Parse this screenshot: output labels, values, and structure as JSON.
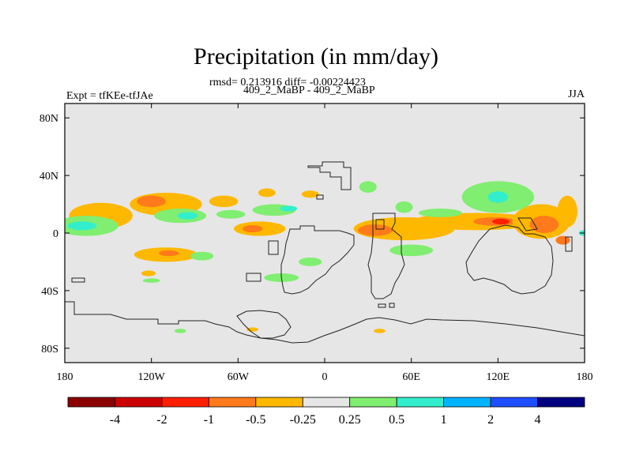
{
  "title": "Precipitation (in mm/day)",
  "stats_line": "rmsd= 0.213916 diff= -0.00224423",
  "center_label": "409_2_MaBP - 409_2_MaBP",
  "left_label": "Expt = tfKEe-tfJAe",
  "right_label": "JJA",
  "map": {
    "lon_range": [
      -180,
      180
    ],
    "lat_range": [
      -90,
      90
    ],
    "x_ticks": [
      {
        "lon": -180,
        "label": "180"
      },
      {
        "lon": -120,
        "label": "120W"
      },
      {
        "lon": -60,
        "label": "60W"
      },
      {
        "lon": 0,
        "label": "0"
      },
      {
        "lon": 60,
        "label": "60E"
      },
      {
        "lon": 120,
        "label": "120E"
      },
      {
        "lon": 180,
        "label": "180"
      }
    ],
    "y_ticks": [
      {
        "lat": 80,
        "label": "80N"
      },
      {
        "lat": 40,
        "label": "40N"
      },
      {
        "lat": 0,
        "label": "0"
      },
      {
        "lat": -40,
        "label": "40S"
      },
      {
        "lat": -80,
        "label": "80S"
      }
    ],
    "background_color": "#e6e6e6"
  },
  "colorbar": {
    "colors": [
      "#8b0000",
      "#cc0000",
      "#ff1f00",
      "#ff7a1a",
      "#ffb800",
      "#e6e6e6",
      "#80ee70",
      "#33eecc",
      "#00b4ff",
      "#1f4eff",
      "#000080"
    ],
    "labels": [
      "-4",
      "-2",
      "-1",
      "-0.5",
      "-0.25",
      "0.25",
      "0.5",
      "1",
      "2",
      "4"
    ]
  },
  "anomalies": [
    {
      "lon": -155,
      "lat": 12,
      "rx": 22,
      "ry": 9,
      "level": "neg1"
    },
    {
      "lon": -110,
      "lat": 20,
      "rx": 25,
      "ry": 8,
      "level": "neg1"
    },
    {
      "lon": -120,
      "lat": 22,
      "rx": 10,
      "ry": 4,
      "level": "neg2"
    },
    {
      "lon": -70,
      "lat": 22,
      "rx": 10,
      "ry": 4,
      "level": "neg1"
    },
    {
      "lon": -40,
      "lat": 28,
      "rx": 6,
      "ry": 3,
      "level": "neg1"
    },
    {
      "lon": -10,
      "lat": 27,
      "rx": 6,
      "ry": 2.5,
      "level": "neg1"
    },
    {
      "lon": -165,
      "lat": 5,
      "rx": 22,
      "ry": 7,
      "level": "pos1"
    },
    {
      "lon": -168,
      "lat": 5,
      "rx": 10,
      "ry": 3,
      "level": "pos2"
    },
    {
      "lon": -100,
      "lat": 12,
      "rx": 18,
      "ry": 5,
      "level": "pos1"
    },
    {
      "lon": -95,
      "lat": 12,
      "rx": 7,
      "ry": 2.5,
      "level": "pos2"
    },
    {
      "lon": -35,
      "lat": 16,
      "rx": 15,
      "ry": 4,
      "level": "pos1"
    },
    {
      "lon": -25,
      "lat": 17,
      "rx": 6,
      "ry": 2,
      "level": "pos2"
    },
    {
      "lon": -65,
      "lat": 13,
      "rx": 10,
      "ry": 3,
      "level": "pos1"
    },
    {
      "lon": -45,
      "lat": 3,
      "rx": 18,
      "ry": 5,
      "level": "neg1"
    },
    {
      "lon": -50,
      "lat": 3,
      "rx": 7,
      "ry": 2.5,
      "level": "neg2"
    },
    {
      "lon": -110,
      "lat": -15,
      "rx": 22,
      "ry": 5,
      "level": "neg1"
    },
    {
      "lon": -108,
      "lat": -14,
      "rx": 7,
      "ry": 2,
      "level": "neg2"
    },
    {
      "lon": -85,
      "lat": -16,
      "rx": 8,
      "ry": 3,
      "level": "pos1"
    },
    {
      "lon": -122,
      "lat": -28,
      "rx": 5,
      "ry": 2,
      "level": "neg1"
    },
    {
      "lon": -30,
      "lat": -31,
      "rx": 12,
      "ry": 3,
      "level": "pos1"
    },
    {
      "lon": 55,
      "lat": 3,
      "rx": 35,
      "ry": 8,
      "level": "neg1"
    },
    {
      "lon": 35,
      "lat": 2,
      "rx": 12,
      "ry": 4,
      "level": "neg2"
    },
    {
      "lon": 105,
      "lat": 8,
      "rx": 45,
      "ry": 6,
      "level": "neg1"
    },
    {
      "lon": 118,
      "lat": 8,
      "rx": 15,
      "ry": 3,
      "level": "neg2"
    },
    {
      "lon": 122,
      "lat": 8,
      "rx": 6,
      "ry": 2,
      "level": "neg3"
    },
    {
      "lon": 150,
      "lat": 8,
      "rx": 20,
      "ry": 12,
      "level": "neg1"
    },
    {
      "lon": 152,
      "lat": 6,
      "rx": 10,
      "ry": 6,
      "level": "neg2"
    },
    {
      "lon": 168,
      "lat": 15,
      "rx": 7,
      "ry": 11,
      "level": "neg1"
    },
    {
      "lon": 128,
      "lat": 20,
      "rx": 6,
      "ry": 3,
      "level": "neg1"
    },
    {
      "lon": 165,
      "lat": -5,
      "rx": 5,
      "ry": 3,
      "level": "neg2"
    },
    {
      "lon": 80,
      "lat": 14,
      "rx": 15,
      "ry": 3,
      "level": "pos1"
    },
    {
      "lon": 120,
      "lat": 25,
      "rx": 25,
      "ry": 11,
      "level": "pos1"
    },
    {
      "lon": 120,
      "lat": 25,
      "rx": 7,
      "ry": 4,
      "level": "pos2"
    },
    {
      "lon": 30,
      "lat": 32,
      "rx": 6,
      "ry": 4,
      "level": "pos1"
    },
    {
      "lon": 55,
      "lat": 18,
      "rx": 6,
      "ry": 4,
      "level": "pos1"
    },
    {
      "lon": 60,
      "lat": -12,
      "rx": 15,
      "ry": 4,
      "level": "pos1"
    },
    {
      "lon": -10,
      "lat": -20,
      "rx": 8,
      "ry": 3,
      "level": "pos1"
    },
    {
      "lon": 180,
      "lat": 0,
      "rx": 4,
      "ry": 2,
      "level": "pos2"
    },
    {
      "lon": -50,
      "lat": -67,
      "rx": 4,
      "ry": 1.5,
      "level": "neg1"
    },
    {
      "lon": 38,
      "lat": -68,
      "rx": 4,
      "ry": 1.5,
      "level": "neg1"
    },
    {
      "lon": -120,
      "lat": -33,
      "rx": 6,
      "ry": 1.5,
      "level": "pos1"
    },
    {
      "lon": -100,
      "lat": -68,
      "rx": 4,
      "ry": 1.5,
      "level": "pos1"
    }
  ]
}
